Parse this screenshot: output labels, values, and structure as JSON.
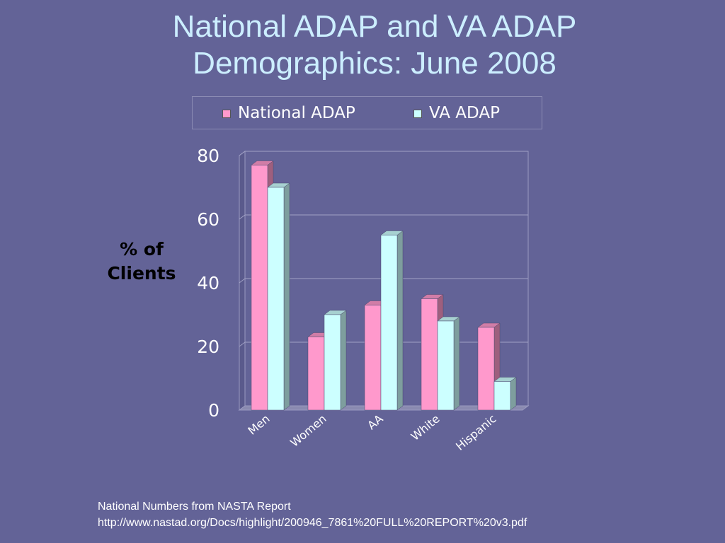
{
  "title": {
    "line1": "National ADAP and VA ADAP",
    "line2": "Demographics: June 2008"
  },
  "ylabel": {
    "line1": "% of",
    "line2": "Clients"
  },
  "footnote": {
    "line1": "National Numbers from NASTA Report",
    "line2": "http://www.nastad.org/Docs/highlight/200946_7861%20FULL%20REPORT%20v3.pdf"
  },
  "colors": {
    "background": "#636397",
    "title": "#cceeff",
    "national": "#ff99cc",
    "va": "#ccffff"
  },
  "chart_data": {
    "type": "bar",
    "categories": [
      "Men",
      "Women",
      "AA",
      "White",
      "Hispanic"
    ],
    "series": [
      {
        "name": "National ADAP",
        "values": [
          77,
          23,
          33,
          35,
          26
        ],
        "color": "#ff99cc"
      },
      {
        "name": "VA ADAP",
        "values": [
          70,
          30,
          55,
          28,
          9
        ],
        "color": "#ccffff"
      }
    ],
    "yticks": [
      "0",
      "20",
      "40",
      "60",
      "80"
    ],
    "ylim": [
      0,
      80
    ],
    "grid": true,
    "legend_position": "top",
    "style": "3d-clustered-column"
  }
}
